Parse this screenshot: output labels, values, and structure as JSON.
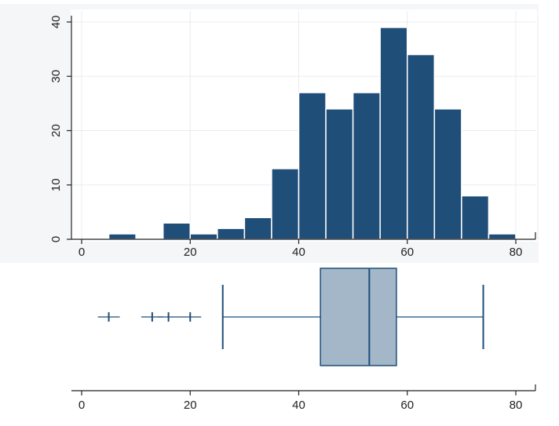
{
  "chart_data": [
    {
      "type": "bar",
      "subtype": "histogram",
      "title": "",
      "xlabel": "",
      "ylabel": "",
      "bin_width": 5,
      "bin_starts": [
        0,
        5,
        10,
        15,
        20,
        25,
        30,
        35,
        40,
        45,
        50,
        55,
        60,
        65,
        70,
        75
      ],
      "values": [
        0,
        1,
        0,
        3,
        1,
        2,
        4,
        13,
        27,
        24,
        27,
        39,
        34,
        24,
        8,
        1
      ],
      "xlim": [
        0,
        80
      ],
      "ylim": [
        0,
        40
      ],
      "x_ticks": [
        "0",
        "20",
        "40",
        "60",
        "80"
      ],
      "y_ticks": [
        "0",
        "10",
        "20",
        "30",
        "40"
      ],
      "grid": true,
      "colors": {
        "bar": "#1f4e79",
        "bar_edge": "#ffffff",
        "grid": "#e8ecef",
        "axis": "#222222",
        "panel": "#f4f6f8"
      }
    },
    {
      "type": "box",
      "title": "",
      "xlabel": "",
      "xlim": [
        0,
        80
      ],
      "x_ticks": [
        "0",
        "20",
        "40",
        "60",
        "80"
      ],
      "q1": 44,
      "median": 53,
      "q3": 58,
      "whisker_low": 26,
      "whisker_high": 74,
      "outliers": [
        5,
        13,
        16,
        20
      ],
      "colors": {
        "box_fill": "#a3b7c8",
        "line": "#1f4e79",
        "axis": "#222222"
      }
    }
  ]
}
